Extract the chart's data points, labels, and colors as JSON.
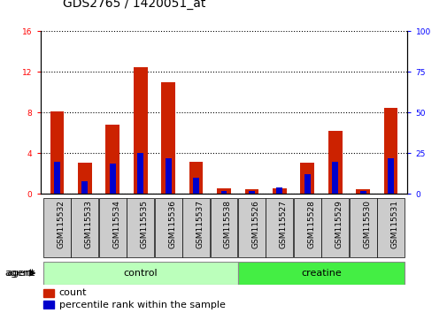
{
  "title": "GDS2765 / 1420051_at",
  "categories": [
    "GSM115532",
    "GSM115533",
    "GSM115534",
    "GSM115535",
    "GSM115536",
    "GSM115537",
    "GSM115538",
    "GSM115526",
    "GSM115527",
    "GSM115528",
    "GSM115529",
    "GSM115530",
    "GSM115531"
  ],
  "count_values": [
    8.1,
    3.1,
    6.8,
    12.5,
    11.0,
    3.2,
    0.55,
    0.5,
    0.55,
    3.1,
    6.2,
    0.5,
    8.5
  ],
  "percentile_values": [
    20,
    8,
    19,
    25,
    22,
    10,
    2,
    2,
    4,
    12,
    20,
    2,
    22
  ],
  "bar_color_red": "#CC2200",
  "bar_color_blue": "#0000CC",
  "ylim_left": [
    0,
    16
  ],
  "ylim_right": [
    0,
    100
  ],
  "yticks_left": [
    0,
    4,
    8,
    12,
    16
  ],
  "yticks_right": [
    0,
    25,
    50,
    75,
    100
  ],
  "n_control": 7,
  "control_label": "control",
  "creatine_label": "creatine",
  "agent_label": "agent",
  "legend_count": "count",
  "legend_percentile": "percentile rank within the sample",
  "title_fontsize": 10,
  "tick_fontsize": 6.5,
  "label_fontsize": 8,
  "control_color": "#BBFFBB",
  "creatine_color": "#44EE44",
  "tickbox_color": "#CCCCCC",
  "bar_width": 0.5,
  "blue_bar_width": 0.22
}
